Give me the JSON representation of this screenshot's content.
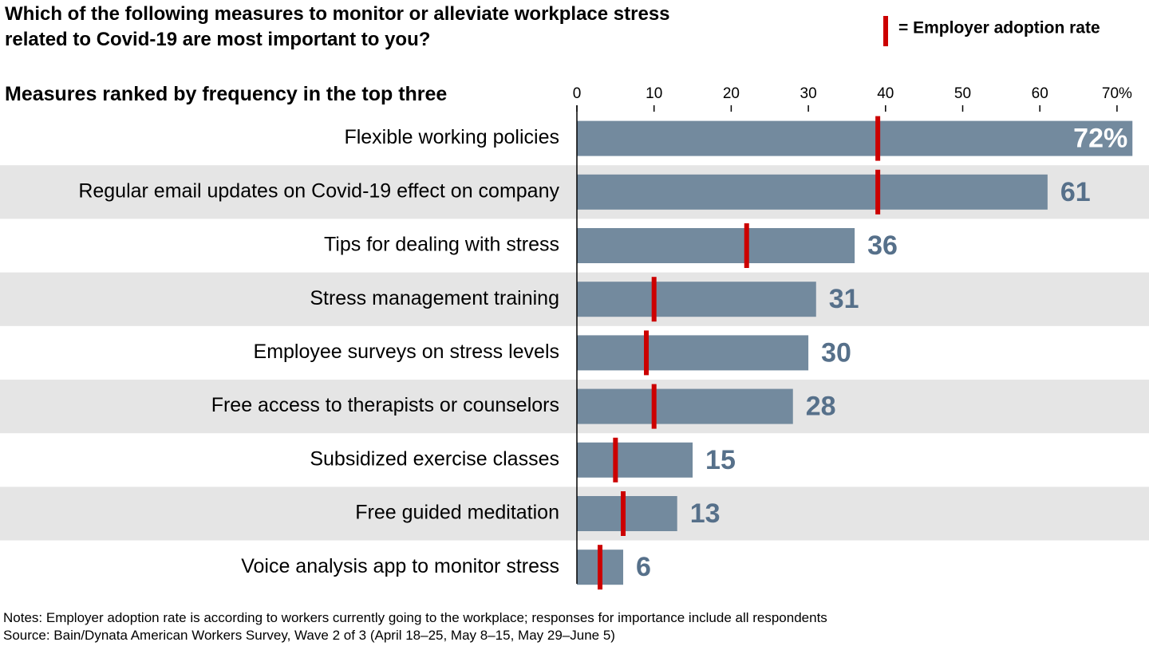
{
  "chart_data": {
    "type": "bar",
    "orientation": "horizontal",
    "title": [
      "Which of the following measures to monitor or alleviate workplace stress",
      "related to Covid-19 are most important to you?"
    ],
    "subtitle": "Measures ranked by frequency in the top three",
    "categories": [
      "Flexible working policies",
      "Regular email updates on Covid-19 effect on company",
      "Tips for dealing with stress",
      "Stress management training",
      "Employee surveys on stress levels",
      "Free access to therapists or counselors",
      "Subsidized exercise classes",
      "Free guided meditation",
      "Voice analysis app to monitor stress"
    ],
    "series": [
      {
        "color": "#738a9e",
        "values": [
          72,
          61,
          36,
          31,
          30,
          28,
          15,
          13,
          6
        ],
        "value_labels": [
          "72%",
          "61",
          "36",
          "31",
          "30",
          "28",
          "15",
          "13",
          "6"
        ]
      },
      {
        "name": "= Employer adoption rate",
        "color": "#cc0000",
        "values": [
          39,
          39,
          22,
          10,
          9,
          10,
          5,
          6,
          3
        ]
      }
    ],
    "xlim": [
      0,
      72
    ],
    "xticks": [
      0,
      10,
      20,
      30,
      40,
      50,
      60,
      {
        "value": 70,
        "label": "70%"
      }
    ],
    "row_shading": true,
    "notes": [
      "Notes: Employer adoption rate is according to workers currently going to the workplace; responses for importance include all respondents",
      "Source: Bain/Dynata American Workers Survey, Wave 2 of 3 (April 18–25, May 8–15, May 29–June 5)"
    ]
  }
}
